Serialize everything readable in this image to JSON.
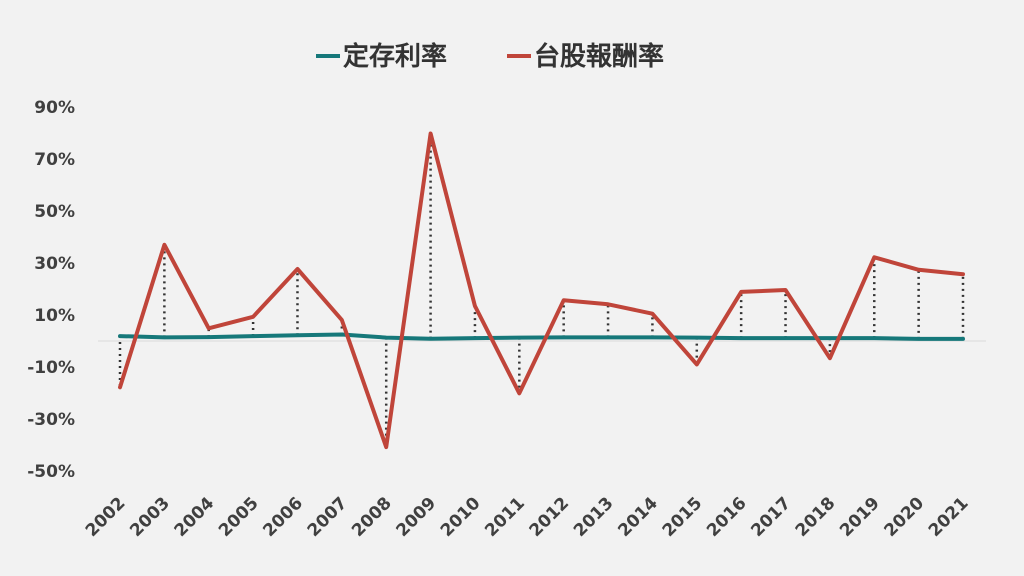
{
  "chart_data": {
    "type": "line",
    "title": "",
    "xlabel": "",
    "ylabel": "",
    "x": [
      "2002",
      "2003",
      "2004",
      "2005",
      "2006",
      "2007",
      "2008",
      "2009",
      "2010",
      "2011",
      "2012",
      "2013",
      "2014",
      "2015",
      "2016",
      "2017",
      "2018",
      "2019",
      "2020",
      "2021"
    ],
    "series": [
      {
        "name": "定存利率",
        "color": "#16787a",
        "values": [
          1.9,
          1.4,
          1.5,
          1.9,
          2.2,
          2.5,
          1.3,
          0.9,
          1.1,
          1.3,
          1.4,
          1.4,
          1.4,
          1.3,
          1.1,
          1.1,
          1.1,
          1.1,
          0.8,
          0.8
        ]
      },
      {
        "name": "台股報酬率",
        "color": "#c0453a",
        "values": [
          -17.8,
          37.0,
          4.9,
          9.3,
          27.7,
          8.1,
          -40.8,
          79.8,
          13.5,
          -20.1,
          15.7,
          14.1,
          10.5,
          -9.0,
          18.9,
          19.6,
          -6.6,
          32.2,
          27.4,
          25.7
        ]
      }
    ],
    "drop_lines": true,
    "y_ticks": [
      "-50%",
      "-30%",
      "-10%",
      "10%",
      "30%",
      "50%",
      "70%",
      "90%"
    ],
    "y_tick_values": [
      -50,
      -30,
      -10,
      10,
      30,
      50,
      70,
      90
    ],
    "ylim": [
      -50,
      90
    ],
    "legend_position": "top-center",
    "grid": false
  }
}
